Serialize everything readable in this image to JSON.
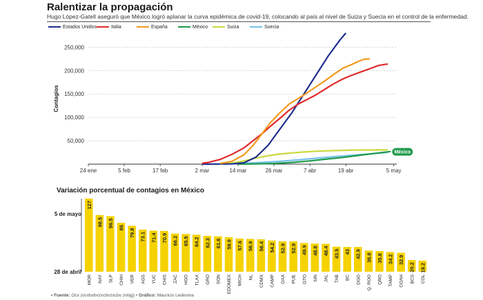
{
  "header": {
    "title": "Ralentizar la propagación",
    "subtitle": "Hugo López-Gatell aseguró que México logró aplanar la curva epidémica de covid-19, colocando al país al nivel de Suiza y Suecia en el control de la enfermedad."
  },
  "footer": {
    "source_label": "• Fuente:",
    "source_text": " Ocv (ocvbxbvzxcbvzxcbv zvbgj) • ",
    "graphic_label": "Gráfico:",
    "graphic_text": " Mauricio Ledesma"
  },
  "chart_data": [
    {
      "type": "line",
      "ylabel": "Contagios",
      "ylim": [
        0,
        280000
      ],
      "yticks": [
        50000,
        100000,
        150000,
        200000,
        250000
      ],
      "ytick_labels": [
        "50,000",
        "100,000",
        "150,000",
        "200,000",
        "250,000"
      ],
      "xlim_days": [
        0,
        103
      ],
      "xticks": [
        {
          "label": "24 ene",
          "day": 0
        },
        {
          "label": "5 feb",
          "day": 12
        },
        {
          "label": "17 feb",
          "day": 24
        },
        {
          "label": "2 mar",
          "day": 38
        },
        {
          "label": "14 mar",
          "day": 50
        },
        {
          "label": "26 mar",
          "day": 62
        },
        {
          "label": "7 abr",
          "day": 74
        },
        {
          "label": "19 abr",
          "day": 86
        },
        {
          "label": "5 may",
          "day": 102
        }
      ],
      "series": [
        {
          "name": "Estados Unidos",
          "color": "#1f2f8f",
          "points": [
            [
              38,
              0
            ],
            [
              48,
              500
            ],
            [
              52,
              3000
            ],
            [
              56,
              15000
            ],
            [
              60,
              40000
            ],
            [
              64,
              75000
            ],
            [
              68,
              110000
            ],
            [
              72,
              150000
            ],
            [
              76,
              190000
            ],
            [
              80,
              230000
            ],
            [
              84,
              265000
            ],
            [
              86,
              280000
            ]
          ]
        },
        {
          "name": "Italia",
          "color": "#e02a2a",
          "points": [
            [
              38,
              2000
            ],
            [
              40,
              3500
            ],
            [
              44,
              10000
            ],
            [
              48,
              21000
            ],
            [
              52,
              35000
            ],
            [
              55,
              50000
            ],
            [
              58,
              65000
            ],
            [
              61,
              82000
            ],
            [
              64,
              98000
            ],
            [
              67,
              115000
            ],
            [
              70,
              128000
            ],
            [
              73,
              138000
            ],
            [
              76,
              148000
            ],
            [
              79,
              160000
            ],
            [
              82,
              172000
            ],
            [
              85,
              182000
            ],
            [
              88,
              190000
            ],
            [
              91,
              197000
            ],
            [
              94,
              204000
            ],
            [
              97,
              211000
            ],
            [
              100,
              214000
            ]
          ]
        },
        {
          "name": "España",
          "color": "#f29a1e",
          "points": [
            [
              44,
              1500
            ],
            [
              48,
              6000
            ],
            [
              52,
              20000
            ],
            [
              55,
              40000
            ],
            [
              58,
              65000
            ],
            [
              61,
              90000
            ],
            [
              64,
              110000
            ],
            [
              67,
              128000
            ],
            [
              70,
              140000
            ],
            [
              73,
              152000
            ],
            [
              76,
              165000
            ],
            [
              79,
              178000
            ],
            [
              82,
              192000
            ],
            [
              85,
              205000
            ],
            [
              88,
              213000
            ],
            [
              90,
              219000
            ],
            [
              92,
              224000
            ],
            [
              94,
              225000
            ]
          ]
        },
        {
          "name": "México",
          "color": "#1f9a4a",
          "points": [
            [
              50,
              50
            ],
            [
              56,
              500
            ],
            [
              62,
              1500
            ],
            [
              68,
              3500
            ],
            [
              74,
              7000
            ],
            [
              80,
              11000
            ],
            [
              86,
              15000
            ],
            [
              92,
              20000
            ],
            [
              97,
              24000
            ],
            [
              101,
              27000
            ]
          ]
        },
        {
          "name": "Suiza",
          "color": "#c9d93a",
          "points": [
            [
              44,
              500
            ],
            [
              48,
              2000
            ],
            [
              52,
              7000
            ],
            [
              56,
              13000
            ],
            [
              60,
              18000
            ],
            [
              64,
              21500
            ],
            [
              68,
              24000
            ],
            [
              72,
              26000
            ],
            [
              76,
              27500
            ],
            [
              80,
              28500
            ],
            [
              84,
              29300
            ],
            [
              88,
              29900
            ],
            [
              92,
              30200
            ],
            [
              96,
              30300
            ],
            [
              100,
              30400
            ]
          ]
        },
        {
          "name": "Suecia",
          "color": "#74c2e8",
          "points": [
            [
              48,
              1000
            ],
            [
              56,
              3000
            ],
            [
              64,
              6000
            ],
            [
              70,
              9000
            ],
            [
              76,
              12500
            ],
            [
              82,
              16000
            ],
            [
              88,
              19000
            ],
            [
              94,
              22000
            ],
            [
              100,
              25000
            ]
          ]
        }
      ],
      "annotation": "México"
    },
    {
      "type": "bar",
      "title": "Variación porcentual de contagios en México",
      "axis_top_label": "5 de mayo",
      "axis_bottom_label": "28 de abril",
      "bar_color": "#f5d200",
      "categories": [
        "MOR",
        "NAY",
        "SLP",
        "CHIH",
        "VER",
        "AGS",
        "YUC",
        "CHIS",
        "ZAC",
        "HGO",
        "TLAX",
        "GRO",
        "SON",
        "EDOMEX",
        "MICH",
        "NL",
        "CDMX",
        "CAMP",
        "OAX",
        "PUE",
        "GTO",
        "SIN",
        "JAL",
        "TAB",
        "BC",
        "DGO",
        "Q. ROO",
        "QRO",
        "TAMP",
        "COAH",
        "BCS",
        "COL"
      ],
      "values": [
        127,
        98.5,
        96.5,
        85,
        79.8,
        73.1,
        71.4,
        70.9,
        66.2,
        65.5,
        64.2,
        62.3,
        61.6,
        59.9,
        57.6,
        56.9,
        56.4,
        54.2,
        52.9,
        52.9,
        49.9,
        48.8,
        48.4,
        43.5,
        43,
        42.9,
        36.8,
        35.8,
        34.2,
        32.9,
        20.2,
        19.2
      ],
      "value_labels": [
        "127",
        "98.5",
        "96.5",
        "85",
        "79.8",
        "73.1",
        "71.4",
        "70.9",
        "66.2",
        "65.5",
        "64.2",
        "62.3",
        "61.6",
        "59.9",
        "57.6",
        "56.9",
        "56.4",
        "54.2",
        "52.9",
        "52.9",
        "49.9",
        "48.8",
        "48.4",
        "43.5",
        "43",
        "42.9",
        "36.8",
        "35.8",
        "34.2",
        "32.9",
        "20.2",
        "19.2"
      ]
    }
  ]
}
